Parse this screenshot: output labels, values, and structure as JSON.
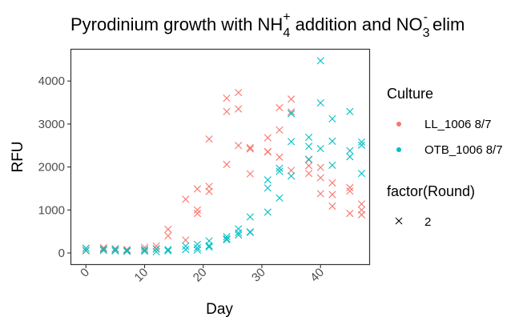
{
  "chart_data": {
    "type": "scatter",
    "title_main": "Pyrodinium growth with NH",
    "title_sub": "4",
    "title_sup": "+",
    "title_mid": " addition and NO",
    "title_sub2": "3",
    "title_sup2": "-",
    "title_end": " elim",
    "xlabel": "Day",
    "ylabel": "RFU",
    "xlim": [
      -2.5,
      48.3
    ],
    "ylim": [
      -260,
      4730
    ],
    "x_ticks": [
      0,
      10,
      20,
      30,
      40
    ],
    "y_ticks": [
      0,
      1000,
      2000,
      3000,
      4000
    ],
    "grid": false,
    "legend_position": "right",
    "legend_culture_title": "Culture",
    "legend_round_title": "factor(Round)",
    "legend_round_label": "2",
    "series": [
      {
        "name": "LL_1006 8/7",
        "color": "#F8766D",
        "points": [
          [
            0,
            110
          ],
          [
            0,
            50
          ],
          [
            3,
            120
          ],
          [
            3,
            70
          ],
          [
            5,
            100
          ],
          [
            5,
            60
          ],
          [
            7,
            80
          ],
          [
            7,
            40
          ],
          [
            10,
            130
          ],
          [
            10,
            70
          ],
          [
            12,
            160
          ],
          [
            12,
            100
          ],
          [
            14,
            550
          ],
          [
            14,
            400
          ],
          [
            17,
            1250
          ],
          [
            17,
            300
          ],
          [
            19,
            1490
          ],
          [
            19,
            1000
          ],
          [
            19,
            920
          ],
          [
            21,
            1550
          ],
          [
            21,
            2650
          ],
          [
            21,
            1430
          ],
          [
            24,
            3600
          ],
          [
            24,
            3290
          ],
          [
            24,
            2060
          ],
          [
            26,
            3730
          ],
          [
            26,
            3350
          ],
          [
            26,
            2500
          ],
          [
            28,
            2450
          ],
          [
            28,
            2420
          ],
          [
            28,
            1840
          ],
          [
            31,
            2680
          ],
          [
            31,
            2350
          ],
          [
            31,
            2360
          ],
          [
            33,
            3380
          ],
          [
            33,
            2860
          ],
          [
            33,
            2230
          ],
          [
            35,
            3580
          ],
          [
            35,
            3280
          ],
          [
            35,
            1920
          ],
          [
            38,
            2030
          ],
          [
            38,
            1850
          ],
          [
            38,
            2170
          ],
          [
            40,
            1990
          ],
          [
            40,
            1750
          ],
          [
            40,
            1380
          ],
          [
            42,
            1360
          ],
          [
            42,
            1630
          ],
          [
            42,
            1090
          ],
          [
            45,
            1520
          ],
          [
            45,
            1440
          ],
          [
            45,
            920
          ],
          [
            47,
            1140
          ],
          [
            47,
            1000
          ],
          [
            47,
            890
          ]
        ]
      },
      {
        "name": "OTB_1006 8/7",
        "color": "#00BFC4",
        "points": [
          [
            0,
            110
          ],
          [
            0,
            60
          ],
          [
            3,
            100
          ],
          [
            3,
            60
          ],
          [
            5,
            90
          ],
          [
            5,
            50
          ],
          [
            7,
            60
          ],
          [
            7,
            40
          ],
          [
            10,
            80
          ],
          [
            10,
            40
          ],
          [
            12,
            90
          ],
          [
            12,
            30
          ],
          [
            14,
            80
          ],
          [
            14,
            50
          ],
          [
            17,
            160
          ],
          [
            17,
            80
          ],
          [
            19,
            200
          ],
          [
            19,
            120
          ],
          [
            19,
            70
          ],
          [
            21,
            280
          ],
          [
            21,
            170
          ],
          [
            21,
            140
          ],
          [
            24,
            380
          ],
          [
            24,
            310
          ],
          [
            24,
            330
          ],
          [
            26,
            560
          ],
          [
            26,
            470
          ],
          [
            26,
            420
          ],
          [
            28,
            840
          ],
          [
            28,
            490
          ],
          [
            28,
            480
          ],
          [
            31,
            1700
          ],
          [
            31,
            1510
          ],
          [
            31,
            950
          ],
          [
            33,
            1970
          ],
          [
            33,
            1900
          ],
          [
            33,
            1280
          ],
          [
            35,
            3240
          ],
          [
            35,
            2590
          ],
          [
            35,
            1790
          ],
          [
            38,
            2690
          ],
          [
            38,
            2480
          ],
          [
            38,
            2180
          ],
          [
            40,
            4470
          ],
          [
            40,
            3490
          ],
          [
            40,
            2430
          ],
          [
            42,
            3120
          ],
          [
            42,
            2600
          ],
          [
            42,
            2040
          ],
          [
            45,
            3290
          ],
          [
            45,
            2380
          ],
          [
            45,
            2240
          ],
          [
            47,
            2580
          ],
          [
            47,
            2510
          ],
          [
            47,
            1850
          ]
        ]
      }
    ]
  }
}
